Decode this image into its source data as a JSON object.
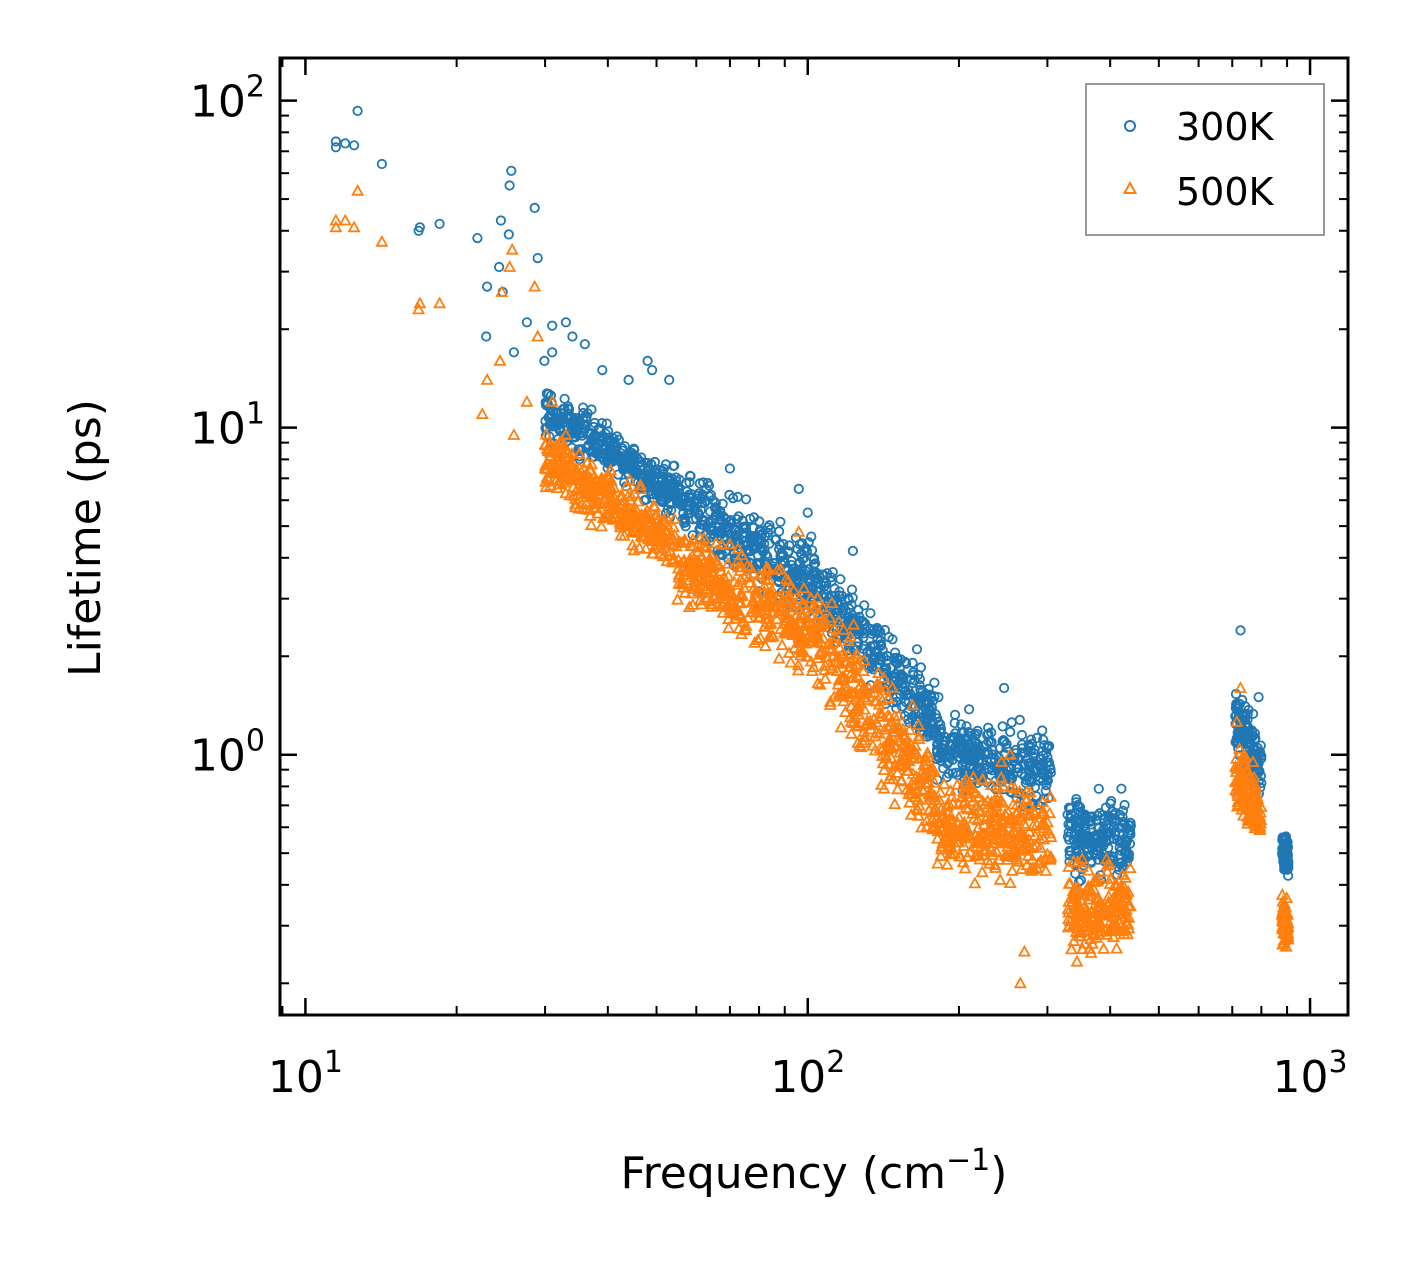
{
  "chart_data": {
    "type": "scatter",
    "title": "",
    "xlabel": "Frequency (cm",
    "xlabel_sup": "−1",
    "xlabel_suffix": ")",
    "ylabel": "Lifetime (ps)",
    "xscale": "log",
    "yscale": "log",
    "xlim": [
      8.9,
      1190
    ],
    "ylim": [
      0.16,
      135
    ],
    "grid": false,
    "legend_position": "top-right",
    "x_major_ticks": [
      {
        "base": "10",
        "exp": "1",
        "value": 10
      },
      {
        "base": "10",
        "exp": "2",
        "value": 100
      },
      {
        "base": "10",
        "exp": "3",
        "value": 1000
      }
    ],
    "y_major_ticks": [
      {
        "base": "10",
        "exp": "0",
        "value": 1
      },
      {
        "base": "10",
        "exp": "1",
        "value": 10
      },
      {
        "base": "10",
        "exp": "2",
        "value": 100
      }
    ],
    "series": [
      {
        "name": "300K",
        "color": "#1f77b4",
        "marker": "circle",
        "sample_points": [
          [
            11.5,
            75
          ],
          [
            11.5,
            72
          ],
          [
            12,
            74
          ],
          [
            12.5,
            73
          ],
          [
            12.7,
            93
          ],
          [
            14.2,
            64
          ],
          [
            16.8,
            40
          ],
          [
            16.9,
            41
          ],
          [
            18.5,
            42
          ],
          [
            22,
            38
          ],
          [
            23,
            27
          ],
          [
            22.9,
            19
          ],
          [
            24.3,
            31
          ],
          [
            24.5,
            43
          ],
          [
            24.7,
            26
          ],
          [
            25.4,
            39
          ],
          [
            25.5,
            55
          ],
          [
            25.7,
            61
          ],
          [
            26,
            17
          ],
          [
            27.6,
            21
          ],
          [
            28.6,
            47
          ],
          [
            29,
            33
          ],
          [
            29.9,
            16
          ],
          [
            31,
            17
          ],
          [
            31,
            20.5
          ],
          [
            33,
            21
          ],
          [
            34,
            19
          ],
          [
            36,
            18
          ],
          [
            39,
            15
          ],
          [
            44,
            14
          ],
          [
            48,
            16
          ],
          [
            49,
            15
          ],
          [
            53,
            14
          ],
          [
            70,
            7.5
          ],
          [
            96,
            6.5
          ],
          [
            100,
            5.5
          ],
          [
            123,
            4.2
          ],
          [
            165,
            2.1
          ],
          [
            182,
            1.5
          ],
          [
            246,
            1.6
          ],
          [
            727,
            2.4
          ],
          [
            790,
            1.5
          ]
        ],
        "clusters": [
          {
            "x_range": [
              30,
              55
            ],
            "y_top": [
              14,
              8
            ],
            "y_bottom": [
              9,
              5
            ]
          },
          {
            "x_range": [
              55,
              100
            ],
            "y_top": [
              8,
              5
            ],
            "y_bottom": [
              4.5,
              2.3
            ]
          },
          {
            "x_range": [
              100,
              180
            ],
            "y_top": [
              5,
              1.8
            ],
            "y_bottom": [
              2.5,
              0.9
            ]
          },
          {
            "x_range": [
              180,
              305
            ],
            "y_top": [
              1.4,
              1.3
            ],
            "y_bottom": [
              0.8,
              0.6
            ]
          },
          {
            "x_range": [
              328,
              440
            ],
            "y_top": [
              0.82,
              0.8
            ],
            "y_bottom": [
              0.38,
              0.38
            ]
          },
          {
            "x_range": [
              710,
              800
            ],
            "y_top": [
              1.8,
              1.2
            ],
            "y_bottom": [
              0.9,
              0.7
            ]
          },
          {
            "x_range": [
              880,
              905
            ],
            "y_top": [
              0.62,
              0.58
            ],
            "y_bottom": [
              0.42,
              0.4
            ]
          }
        ]
      },
      {
        "name": "500K",
        "color": "#ff7f0e",
        "marker": "triangle",
        "sample_points": [
          [
            11.5,
            43
          ],
          [
            11.5,
            41
          ],
          [
            12,
            43
          ],
          [
            12.5,
            41
          ],
          [
            12.7,
            53
          ],
          [
            14.2,
            37
          ],
          [
            16.8,
            23
          ],
          [
            16.9,
            24
          ],
          [
            18.5,
            24
          ],
          [
            22.5,
            11
          ],
          [
            23,
            14
          ],
          [
            24.4,
            16
          ],
          [
            24.6,
            26
          ],
          [
            25.5,
            31
          ],
          [
            25.8,
            35
          ],
          [
            26,
            9.5
          ],
          [
            27.6,
            12
          ],
          [
            28.6,
            27
          ],
          [
            29,
            19
          ],
          [
            31,
            12
          ],
          [
            33,
            9.5
          ],
          [
            727,
            1.6
          ],
          [
            770,
            0.95
          ],
          [
            96,
            4.8
          ],
          [
            70,
            4.4
          ],
          [
            243,
            0.95
          ],
          [
            253,
            1.0
          ],
          [
            270,
            0.25
          ],
          [
            265,
            0.2
          ]
        ],
        "clusters": [
          {
            "x_range": [
              30,
              55
            ],
            "y_top": [
              11,
              5.5
            ],
            "y_bottom": [
              6,
              3.4
            ]
          },
          {
            "x_range": [
              55,
              100
            ],
            "y_top": [
              5.5,
              4
            ],
            "y_bottom": [
              2.7,
              1.5
            ]
          },
          {
            "x_range": [
              100,
              180
            ],
            "y_top": [
              4,
              1.2
            ],
            "y_bottom": [
              1.5,
              0.45
            ]
          },
          {
            "x_range": [
              180,
              305
            ],
            "y_top": [
              0.95,
              0.95
            ],
            "y_bottom": [
              0.4,
              0.33
            ]
          },
          {
            "x_range": [
              328,
              440
            ],
            "y_top": [
              0.52,
              0.52
            ],
            "y_bottom": [
              0.22,
              0.22
            ]
          },
          {
            "x_range": [
              710,
              800
            ],
            "y_top": [
              1.3,
              0.8
            ],
            "y_bottom": [
              0.65,
              0.48
            ]
          },
          {
            "x_range": [
              880,
              905
            ],
            "y_top": [
              0.38,
              0.35
            ],
            "y_bottom": [
              0.26,
              0.24
            ]
          }
        ]
      }
    ]
  }
}
